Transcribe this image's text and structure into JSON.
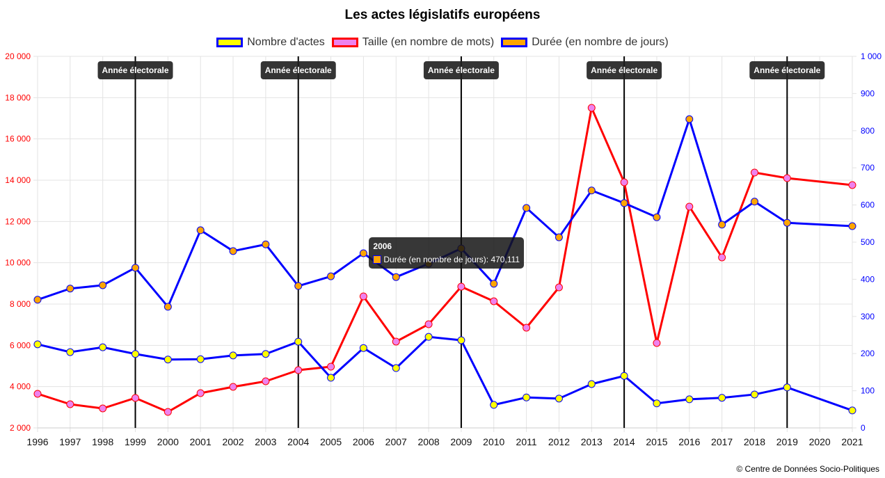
{
  "chart_data": {
    "type": "line",
    "title": "Les actes législatifs européens",
    "categories": [
      "1996",
      "1997",
      "1998",
      "1999",
      "2000",
      "2001",
      "2002",
      "2003",
      "2004",
      "2005",
      "2006",
      "2007",
      "2008",
      "2009",
      "2010",
      "2011",
      "2012",
      "2013",
      "2014",
      "2015",
      "2016",
      "2017",
      "2018",
      "2019",
      "2020",
      "2021"
    ],
    "series": [
      {
        "name": "Nombre d'actes",
        "axis": "right",
        "line_color": "#0000ff",
        "point_color": "#ffff00",
        "values": [
          225,
          204,
          217,
          199,
          184,
          185,
          195,
          199,
          232,
          135,
          215,
          161,
          245,
          236,
          62,
          82,
          79,
          118,
          140,
          66,
          77,
          81,
          90,
          109,
          null,
          47
        ]
      },
      {
        "name": "Taille (en nombre de mots)",
        "axis": "left",
        "line_color": "#ff0000",
        "point_color": "#ee82ee",
        "values": [
          3652,
          3146,
          2944,
          3450,
          2775,
          3686,
          3989,
          4259,
          4798,
          4966,
          8371,
          6180,
          7023,
          8843,
          8135,
          6854,
          8809,
          17507,
          13900,
          6113,
          12720,
          10259,
          14372,
          14102,
          null,
          13765
        ]
      },
      {
        "name": "Durée (en nombre de jours)",
        "axis": "right",
        "line_color": "#0000ff",
        "point_color": "#ffa500",
        "values": [
          345,
          375,
          384,
          431,
          326,
          532,
          476,
          494,
          382,
          408,
          470.111,
          406,
          442,
          483,
          388,
          592,
          513,
          639,
          605,
          567,
          831,
          547,
          609,
          552,
          null,
          543
        ]
      }
    ],
    "left_axis": {
      "min": 2000,
      "max": 20000,
      "step": 2000,
      "ticks": [
        "2 000",
        "4 000",
        "6 000",
        "8 000",
        "10 000",
        "12 000",
        "14 000",
        "16 000",
        "18 000",
        "20 000"
      ],
      "color": "#ff0000"
    },
    "right_axis": {
      "min": 0,
      "max": 1000,
      "step": 100,
      "ticks": [
        "0",
        "100",
        "200",
        "300",
        "400",
        "500",
        "600",
        "700",
        "800",
        "900",
        "1 000"
      ],
      "color": "#0000ff"
    },
    "grid": true,
    "legend_position": "top",
    "annotations": [
      {
        "year": "1999",
        "label": "Année électorale"
      },
      {
        "year": "2004",
        "label": "Année électorale"
      },
      {
        "year": "2009",
        "label": "Année électorale"
      },
      {
        "year": "2014",
        "label": "Année électorale"
      },
      {
        "year": "2019",
        "label": "Année électorale"
      }
    ],
    "tooltip": {
      "series_index": 2,
      "year": "2006",
      "title": "2006",
      "text": "Durée (en nombre de jours): 470,111"
    }
  },
  "footer": "© Centre de Données Socio-Politiques"
}
